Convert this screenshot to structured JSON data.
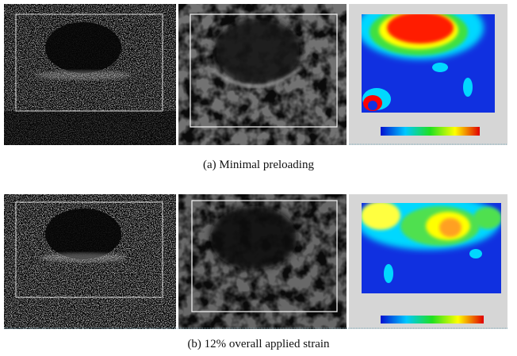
{
  "figure": {
    "panels": [
      {
        "caption": "(a) Minimal preloading"
      },
      {
        "caption": "(b) 12% overall applied strain"
      }
    ]
  }
}
